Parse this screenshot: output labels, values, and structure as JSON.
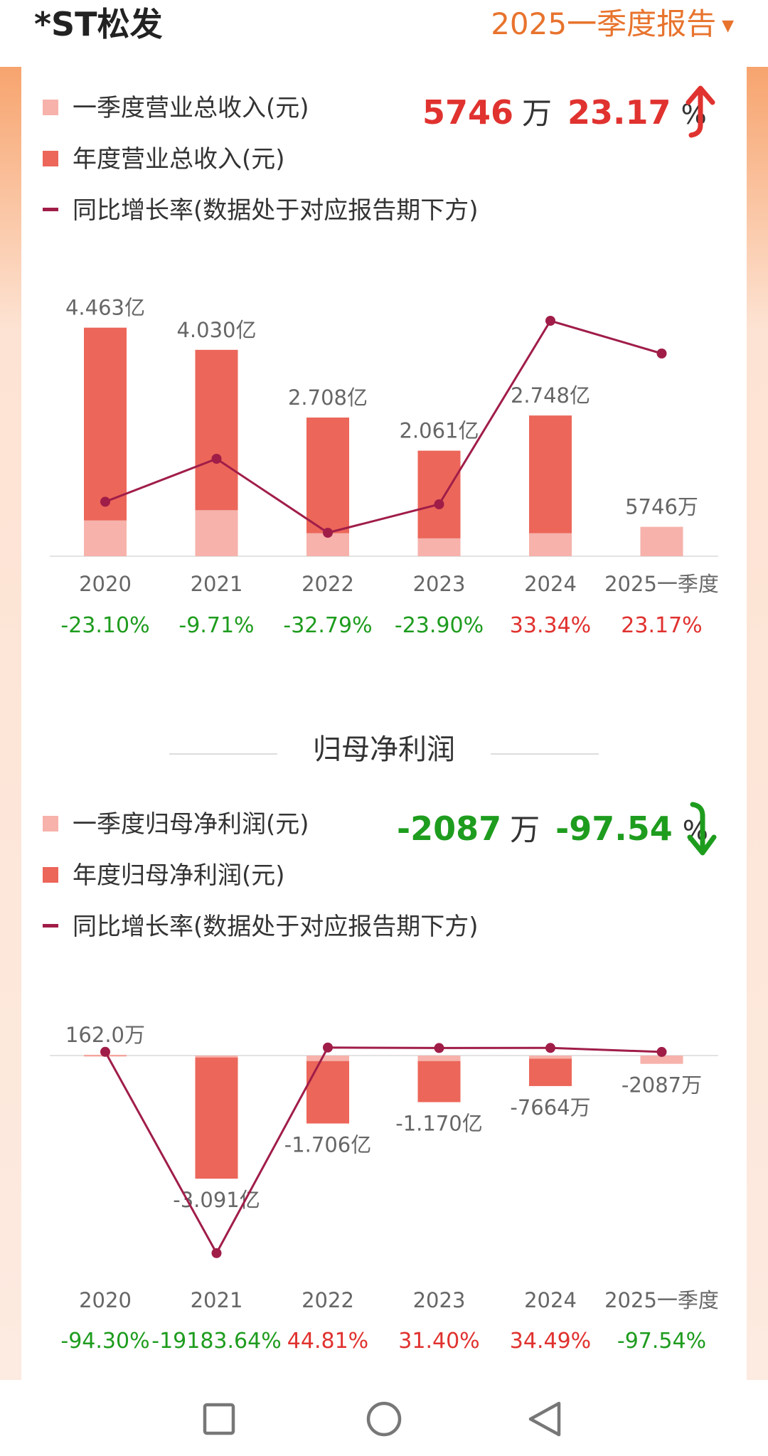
{
  "header": {
    "stock_name": "*ST松发",
    "period": "2025一季度报告"
  },
  "revenue": {
    "legend": [
      "一季度营业总收入(元)",
      "年度营业总收入(元)",
      "同比增长率(数据处于对应报告期下方)"
    ],
    "summary": {
      "value": "5746",
      "unit": "万",
      "pct": "23.17",
      "pct_sign": "%"
    },
    "chart_data": {
      "type": "bar",
      "categories": [
        "2020",
        "2021",
        "2022",
        "2023",
        "2024",
        "2025一季度"
      ],
      "series": [
        {
          "name": "年度营业总收入(元)",
          "values": [
            4.463,
            4.03,
            2.708,
            2.061,
            2.748,
            null
          ]
        },
        {
          "name": "一季度营业总收入(元)",
          "values": [
            0.7,
            0.9,
            0.45,
            0.35,
            0.45,
            0.5746
          ]
        },
        {
          "name": "同比增长率(数据处于对应报告期下方)",
          "values": [
            -23.1,
            -9.71,
            -32.79,
            -23.9,
            33.34,
            23.17
          ]
        }
      ],
      "bar_labels": [
        "4.463亿",
        "4.030亿",
        "2.708亿",
        "2.061亿",
        "2.748亿",
        "5746万"
      ],
      "growth_labels": [
        "-23.10%",
        "-9.71%",
        "-32.79%",
        "-23.90%",
        "33.34%",
        "23.17%"
      ],
      "unit": "亿"
    }
  },
  "profit": {
    "title": "归母净利润",
    "legend": [
      "一季度归母净利润(元)",
      "年度归母净利润(元)",
      "同比增长率(数据处于对应报告期下方)"
    ],
    "summary": {
      "value": "-2087",
      "unit": "万",
      "pct": "-97.54",
      "pct_sign": "%"
    },
    "chart_data": {
      "type": "bar",
      "categories": [
        "2020",
        "2021",
        "2022",
        "2023",
        "2024",
        "2025一季度"
      ],
      "series": [
        {
          "name": "年度归母净利润(元)",
          "values": [
            0.0162,
            -3.091,
            -1.706,
            -1.17,
            -0.7664,
            null
          ]
        },
        {
          "name": "一季度归母净利润(元)",
          "values": [
            0.01,
            -0.05,
            -0.14,
            -0.14,
            -0.08,
            -0.2087
          ]
        },
        {
          "name": "同比增长率(数据处于对应报告期下方)",
          "values": [
            -94.3,
            -19183.64,
            44.81,
            31.4,
            34.49,
            -97.54
          ]
        }
      ],
      "bar_labels": [
        "162.0万",
        "-3.091亿",
        "-1.706亿",
        "-1.170亿",
        "-7664万",
        "-2087万"
      ],
      "growth_labels": [
        "-94.30%",
        "-19183.64%",
        "44.81%",
        "31.40%",
        "34.49%",
        "-97.54%"
      ],
      "unit": "亿"
    }
  },
  "colors": {
    "annual_bar": "#ec665a",
    "quarter_bar": "#f6b2ab",
    "growth_line": "#a01d48",
    "up": "#e0322f",
    "down": "#1e9c1e",
    "accent": "#e8732d"
  },
  "icons": {
    "up_arrow": "up-arrow-icon",
    "down_arrow": "down-arrow-icon",
    "nav": [
      "square-recent-apps-icon",
      "circle-home-icon",
      "triangle-back-icon"
    ]
  }
}
